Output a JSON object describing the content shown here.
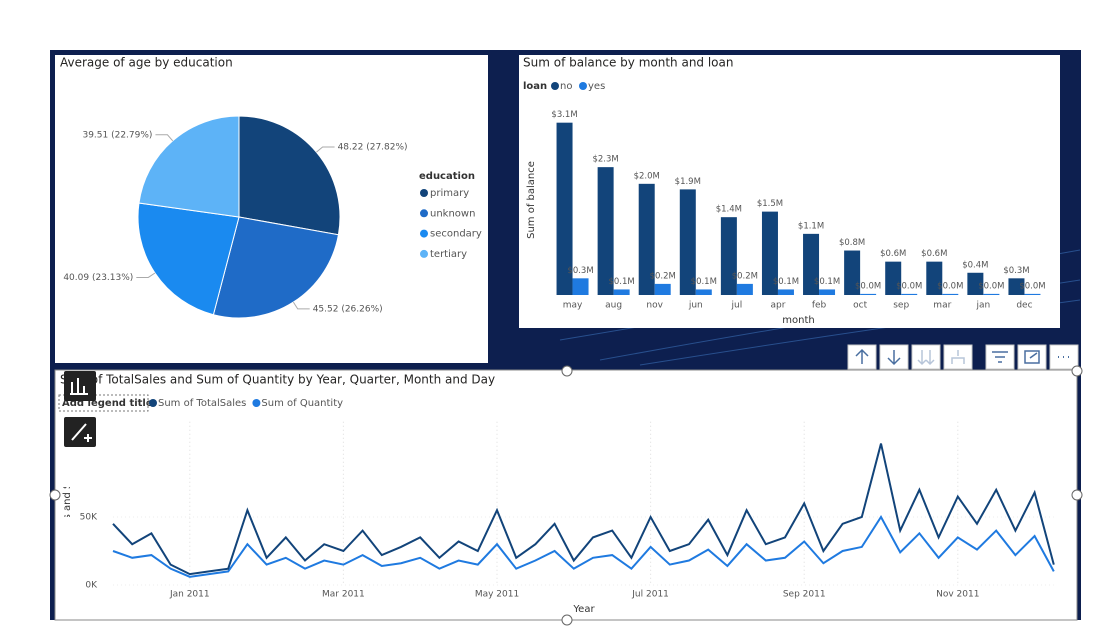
{
  "chart_data": [
    {
      "type": "pie",
      "title": "Average of age by education",
      "legend_title": "education",
      "categories": [
        "primary",
        "unknown",
        "secondary",
        "tertiary"
      ],
      "values": [
        48.22,
        45.52,
        40.09,
        39.51
      ],
      "value_labels": [
        "48.22 (27.82%)",
        "45.52 (26.26%)",
        "40.09 (23.13%)",
        "39.51 (22.79%)"
      ],
      "colors": [
        "#12447a",
        "#1f6bc7",
        "#1a8af0",
        "#5db3f7"
      ]
    },
    {
      "type": "bar",
      "title": "Sum of balance by month and loan",
      "legend_title": "loan",
      "x_label": "month",
      "y_label": "Sum of balance",
      "categories": [
        "may",
        "aug",
        "nov",
        "jun",
        "jul",
        "apr",
        "feb",
        "oct",
        "sep",
        "mar",
        "jan",
        "dec"
      ],
      "series": [
        {
          "name": "no",
          "color": "#12447a",
          "values": [
            3100000,
            2300000,
            2000000,
            1900000,
            1400000,
            1500000,
            1100000,
            800000,
            600000,
            600000,
            400000,
            300000
          ],
          "value_labels": [
            "$3.1M",
            "$2.3M",
            "$2.0M",
            "$1.9M",
            "$1.4M",
            "$1.5M",
            "$1.1M",
            "$0.8M",
            "$0.6M",
            "$0.6M",
            "$0.4M",
            "$0.3M"
          ]
        },
        {
          "name": "yes",
          "color": "#1f7ae0",
          "values": [
            300000,
            100000,
            200000,
            100000,
            200000,
            100000,
            100000,
            20000,
            20000,
            20000,
            20000,
            20000
          ],
          "value_labels": [
            "$0.3M",
            "$0.1M",
            "$0.2M",
            "$0.1M",
            "$0.2M",
            "$0.1M",
            "$0.1M",
            "$0.0M",
            "$0.0M",
            "$0.0M",
            "$0.0M",
            "$0.0M"
          ]
        }
      ],
      "ylim": [
        0,
        3400000
      ]
    },
    {
      "type": "line",
      "title": "Sum of TotalSales and Sum of Quantity by Year, Quarter, Month and Day",
      "legend_title": "Add legend title",
      "x_label": "Year",
      "y_label": "Sum of TotalSales and Sum of Quantity",
      "x": [
        0,
        0.25,
        0.5,
        0.75,
        1,
        1.25,
        1.5,
        1.75,
        2,
        2.25,
        2.5,
        2.75,
        3,
        3.25,
        3.5,
        3.75,
        4,
        4.25,
        4.5,
        4.75,
        5,
        5.25,
        5.5,
        5.75,
        6,
        6.25,
        6.5,
        6.75,
        7,
        7.25,
        7.5,
        7.75,
        8,
        8.25,
        8.5,
        8.75,
        9,
        9.25,
        9.5,
        9.75,
        10,
        10.25,
        10.5,
        10.75,
        11,
        11.25,
        11.5,
        11.75,
        12,
        12.25
      ],
      "series": [
        {
          "name": "Sum of TotalSales",
          "color": "#12447a",
          "values": [
            45000,
            30000,
            38000,
            15000,
            8000,
            10000,
            12000,
            55000,
            20000,
            35000,
            18000,
            30000,
            25000,
            40000,
            22000,
            28000,
            35000,
            20000,
            32000,
            25000,
            55000,
            20000,
            30000,
            45000,
            18000,
            35000,
            40000,
            20000,
            50000,
            25000,
            30000,
            48000,
            22000,
            55000,
            30000,
            35000,
            60000,
            25000,
            45000,
            50000,
            104000,
            40000,
            70000,
            35000,
            65000,
            45000,
            70000,
            40000,
            68000,
            15000
          ]
        },
        {
          "name": "Sum of Quantity",
          "color": "#1f7ae0",
          "values": [
            25000,
            20000,
            22000,
            12000,
            6000,
            8000,
            10000,
            30000,
            15000,
            20000,
            12000,
            18000,
            15000,
            22000,
            14000,
            16000,
            20000,
            12000,
            18000,
            15000,
            30000,
            12000,
            18000,
            25000,
            12000,
            20000,
            22000,
            12000,
            28000,
            15000,
            18000,
            26000,
            14000,
            30000,
            18000,
            20000,
            32000,
            16000,
            25000,
            28000,
            50000,
            24000,
            38000,
            20000,
            35000,
            26000,
            40000,
            22000,
            36000,
            10000
          ]
        }
      ],
      "xlim": [
        0,
        12.25
      ],
      "xticks": [
        {
          "value": 1,
          "label": "Jan 2011"
        },
        {
          "value": 3,
          "label": "Mar 2011"
        },
        {
          "value": 5,
          "label": "May 2011"
        },
        {
          "value": 7,
          "label": "Jul 2011"
        },
        {
          "value": 9,
          "label": "Sep 2011"
        },
        {
          "value": 11,
          "label": "Nov 2011"
        }
      ],
      "ylim": [
        0,
        120000
      ],
      "yticks": [
        {
          "value": 0,
          "label": "0K"
        },
        {
          "value": 50000,
          "label": "50K"
        }
      ],
      "grid": true
    }
  ]
}
